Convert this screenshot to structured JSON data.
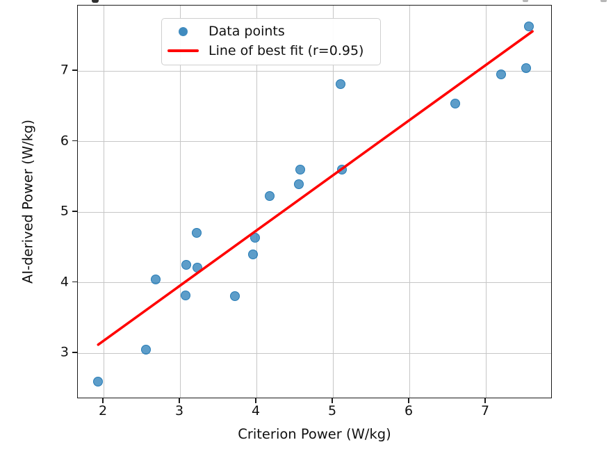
{
  "figure": {
    "background": "#ffffff",
    "frame_color": "#1b1b1b"
  },
  "chart_data": {
    "type": "scatter",
    "xlabel": "Criterion Power (W/kg)",
    "ylabel": "AI-derived Power (W/kg)",
    "xlim": [
      1.66,
      7.87
    ],
    "ylim": [
      2.35,
      7.93
    ],
    "xticks": [
      2,
      3,
      4,
      5,
      6,
      7
    ],
    "yticks": [
      3,
      4,
      5,
      6,
      7
    ],
    "grid": true,
    "grid_color": "#c6c6c6",
    "legend": {
      "position": "upper left",
      "entries": [
        {
          "label": "Data points",
          "marker": "circle",
          "color": "#1f77b4"
        },
        {
          "label": "Line of best fit (r=0.95)",
          "marker": "line",
          "color": "#ff0000"
        }
      ]
    },
    "series": [
      {
        "name": "Data points",
        "type": "scatter",
        "color": "#1f77b4",
        "alpha": 0.72,
        "points": [
          [
            1.93,
            2.6
          ],
          [
            2.55,
            3.05
          ],
          [
            2.68,
            4.04
          ],
          [
            3.07,
            3.82
          ],
          [
            3.08,
            4.25
          ],
          [
            3.23,
            4.21
          ],
          [
            3.22,
            4.7
          ],
          [
            3.72,
            3.81
          ],
          [
            3.95,
            4.4
          ],
          [
            3.98,
            4.64
          ],
          [
            4.17,
            5.23
          ],
          [
            4.55,
            5.39
          ],
          [
            4.57,
            5.6
          ],
          [
            5.12,
            5.6
          ],
          [
            5.1,
            6.81
          ],
          [
            6.6,
            6.54
          ],
          [
            7.2,
            6.95
          ],
          [
            7.53,
            7.04
          ],
          [
            7.56,
            7.63
          ]
        ]
      },
      {
        "name": "Line of best fit (r=0.95)",
        "type": "line",
        "color": "#ff0000",
        "r": 0.95,
        "x": [
          1.93,
          7.61
        ],
        "y": [
          3.12,
          7.56
        ]
      }
    ]
  }
}
